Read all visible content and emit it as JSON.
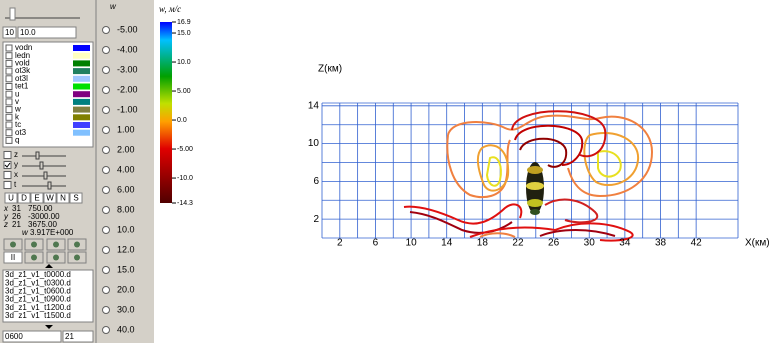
{
  "left_panel": {
    "slider_value": "10",
    "slider_field": "10.0",
    "layers": [
      {
        "name": "vodn",
        "color": "#0000ff"
      },
      {
        "name": "ledn",
        "color": "#ffffc0"
      },
      {
        "name": "vold",
        "color": "#008000"
      },
      {
        "name": "ot3k",
        "color": "#208060"
      },
      {
        "name": "ot3l",
        "color": "#a0c8ff"
      },
      {
        "name": "tet1",
        "color": "#00e000"
      },
      {
        "name": "u",
        "color": "#800080"
      },
      {
        "name": "v",
        "color": "#008080"
      },
      {
        "name": "w",
        "color": "#808040"
      },
      {
        "name": "k",
        "color": "#808000"
      },
      {
        "name": "tc",
        "color": "#4040ff"
      },
      {
        "name": "ot3",
        "color": "#80c0ff"
      },
      {
        "name": "q",
        "color": "#ffffff"
      }
    ],
    "axes_rows": [
      {
        "name": "z",
        "checked": false
      },
      {
        "name": "y",
        "checked": true
      },
      {
        "name": "x",
        "checked": false
      },
      {
        "name": "t",
        "checked": false
      }
    ],
    "dir_buttons": [
      "U",
      "D",
      "E",
      "W",
      "N",
      "S"
    ],
    "coords": [
      {
        "axis": "x",
        "index": "31",
        "value": "750.00"
      },
      {
        "axis": "y",
        "index": "26",
        "value": "-3000.00"
      },
      {
        "axis": "z",
        "index": "21",
        "value": "3675.00"
      }
    ],
    "w_readout": {
      "label": "w",
      "value": "3.917E+000"
    },
    "icon_buttons": [
      "II"
    ],
    "files": [
      "3d_z1_v1_t0000.d",
      "3d_z1_v1_t0300.d",
      "3d_z1_v1_t0600.d",
      "3d_z1_v1_t0900.d",
      "3d_z1_v1_t1200.d",
      "3d_z1_v1_t1500.d"
    ],
    "frame_field": "0600",
    "level_field": "21"
  },
  "levels": {
    "header": "w",
    "options": [
      "-5.00",
      "-4.00",
      "-3.00",
      "-2.00",
      "-1.00",
      "1.00",
      "2.00",
      "4.00",
      "6.00",
      "8.00",
      "10.0",
      "12.0",
      "15.0",
      "20.0",
      "30.0",
      "40.0"
    ]
  },
  "colorbar": {
    "title": "w, м/с",
    "ticks": [
      16.9,
      {
        "value": 15,
        "label": "15.0"
      },
      {
        "value": 10,
        "label": "10.0"
      },
      {
        "value": 5,
        "label": "5.00"
      },
      {
        "value": 0,
        "label": "0.0"
      },
      {
        "value": -5,
        "label": "-5.00"
      },
      {
        "value": -10,
        "label": "-10.0"
      },
      -14.3
    ]
  },
  "plot": {
    "y_label": "Z(км)",
    "x_label": "X(км)",
    "xlim": [
      0,
      46.7
    ],
    "ylim": [
      0,
      14.3
    ],
    "xticks": [
      2,
      6,
      10,
      14,
      18,
      22,
      26,
      30,
      34,
      38,
      42
    ],
    "yticks": [
      14,
      10,
      6,
      2
    ]
  }
}
